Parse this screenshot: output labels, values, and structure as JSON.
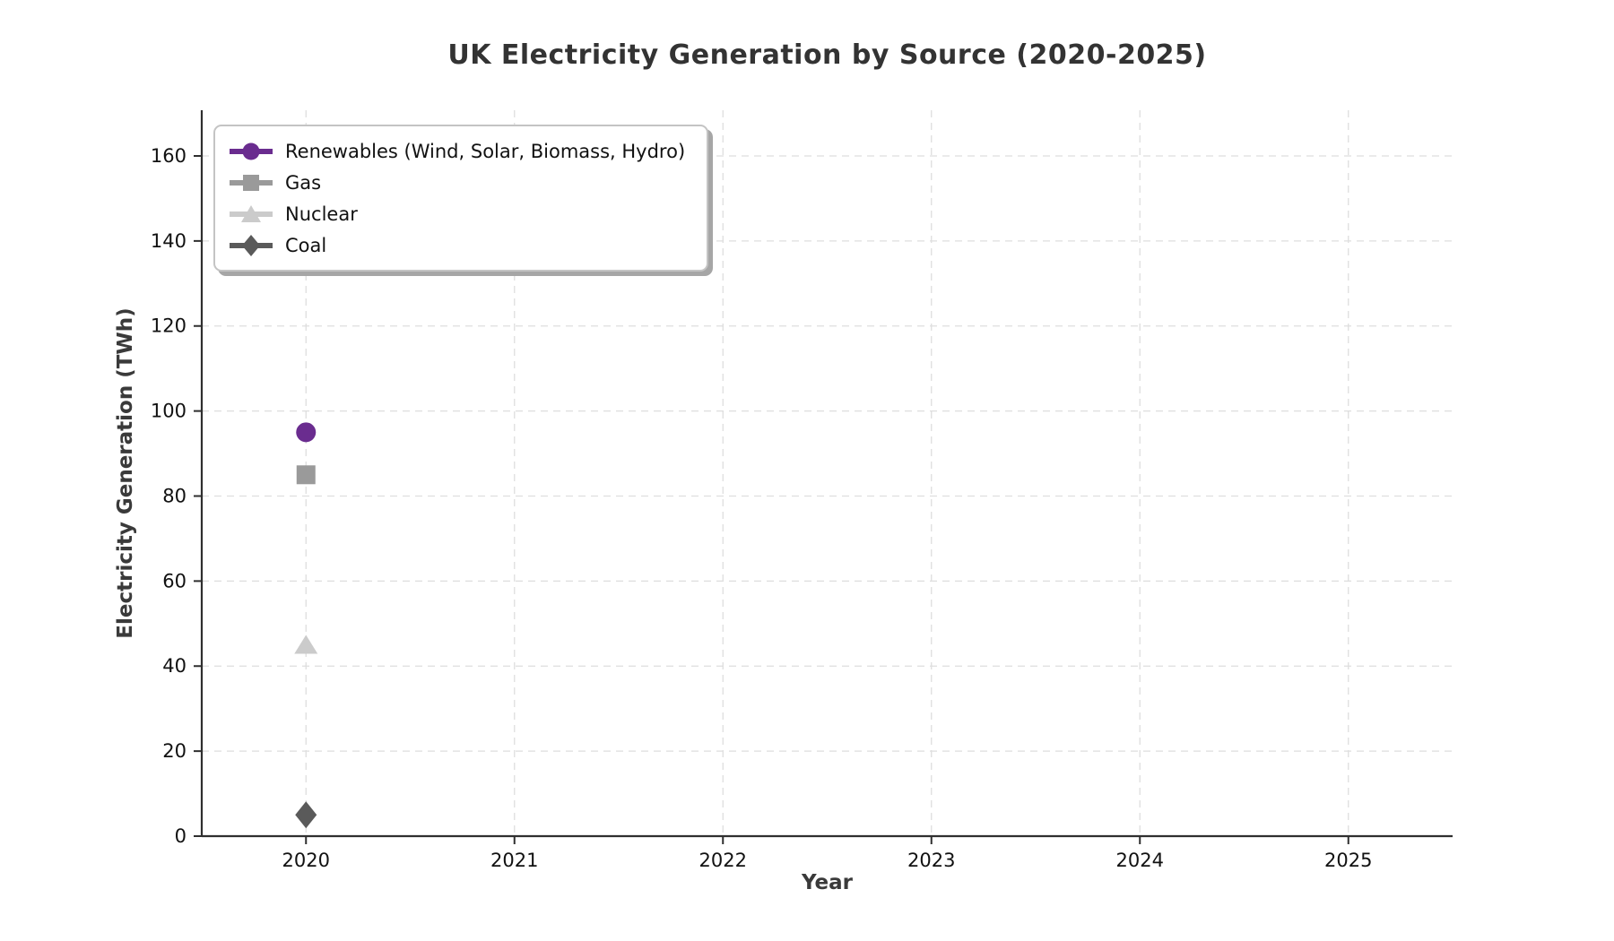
{
  "chart_data": {
    "type": "line",
    "title": "UK Electricity Generation by Source (2020-2025)",
    "xlabel": "Year",
    "ylabel": "Electricity Generation (TWh)",
    "x": [
      2020
    ],
    "series": [
      {
        "name": "Renewables (Wind, Solar, Biomass, Hydro)",
        "values": [
          95
        ],
        "color": "#6a2c8f",
        "marker": "circle"
      },
      {
        "name": "Gas",
        "values": [
          85
        ],
        "color": "#9a9a9a",
        "marker": "square"
      },
      {
        "name": "Nuclear",
        "values": [
          45
        ],
        "color": "#cbcbcb",
        "marker": "triangle"
      },
      {
        "name": "Coal",
        "values": [
          5
        ],
        "color": "#5a5a5a",
        "marker": "diamond"
      }
    ],
    "xlim": [
      2019.5,
      2025.5
    ],
    "ylim": [
      0,
      170.75
    ],
    "xticks": [
      2020,
      2021,
      2022,
      2023,
      2024,
      2025
    ],
    "yticks": [
      0,
      20,
      40,
      60,
      80,
      100,
      120,
      140,
      160
    ],
    "grid": true,
    "grid_style": "dashed",
    "legend_position": "upper-left"
  }
}
